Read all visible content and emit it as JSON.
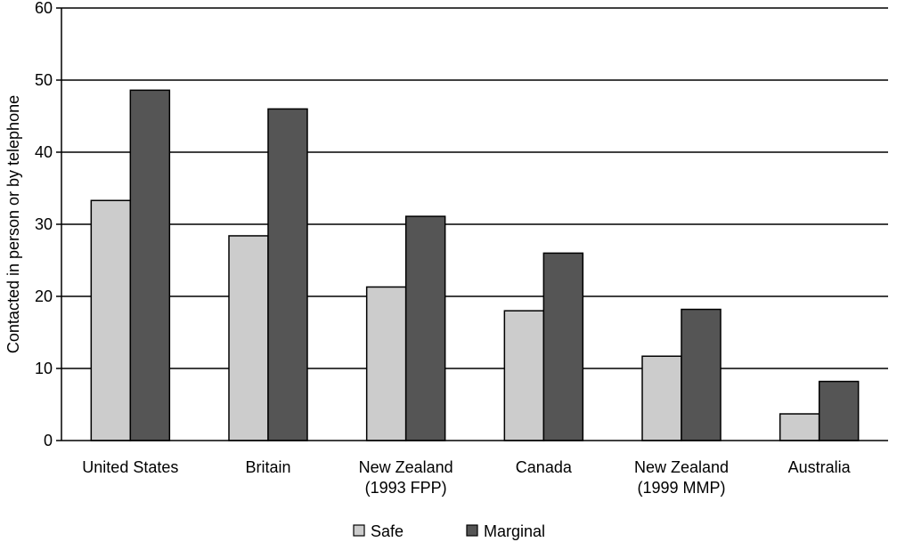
{
  "chart_data": {
    "type": "bar",
    "title": "",
    "xlabel": "",
    "ylabel": "Contacted in person or by telephone",
    "ylim": [
      0,
      60
    ],
    "yticks": [
      0,
      10,
      20,
      30,
      40,
      50,
      60
    ],
    "grid": true,
    "legend_position": "bottom-center",
    "categories": [
      [
        "United States"
      ],
      [
        "Britain"
      ],
      [
        "New Zealand",
        "(1993 FPP)"
      ],
      [
        "Canada"
      ],
      [
        "New Zealand",
        "(1999 MMP)"
      ],
      [
        "Australia"
      ]
    ],
    "series": [
      {
        "name": "Safe",
        "color": "#cccccc",
        "values": [
          33.3,
          28.4,
          21.3,
          18.0,
          11.7,
          3.7
        ]
      },
      {
        "name": "Marginal",
        "color": "#555555",
        "values": [
          48.6,
          46.0,
          31.1,
          26.0,
          18.2,
          8.2
        ]
      }
    ]
  }
}
